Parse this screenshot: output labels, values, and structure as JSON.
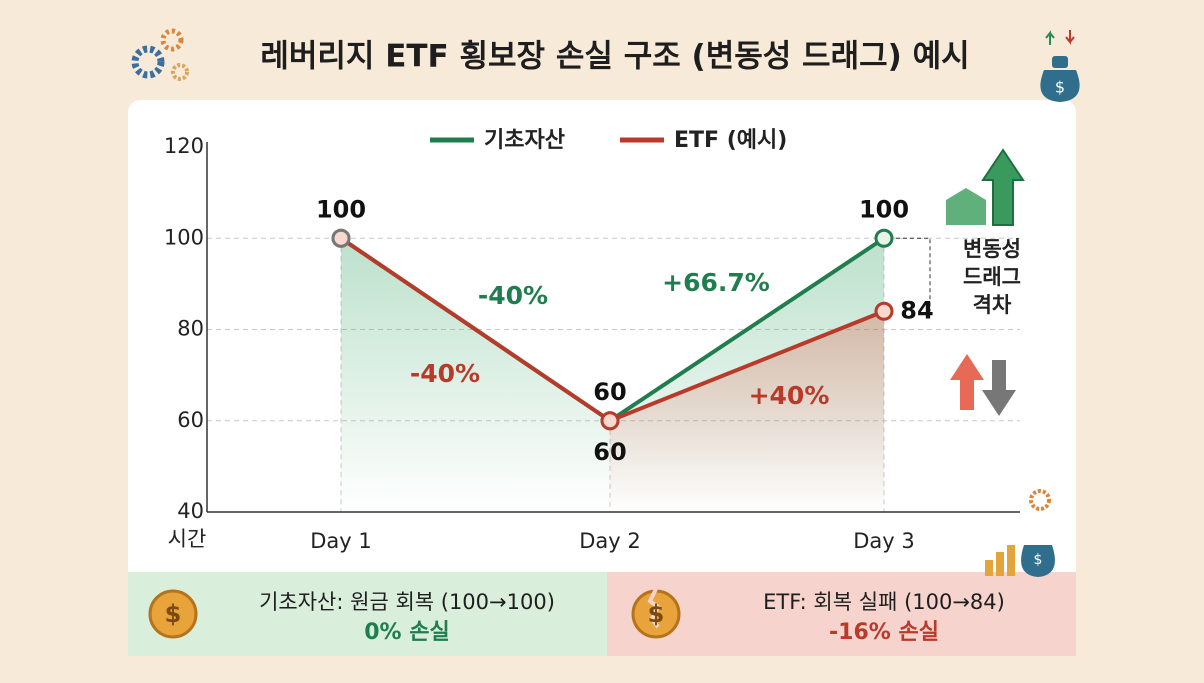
{
  "chart_data": {
    "type": "line",
    "title": "레버리지 ETF 횡보장 손실 구조 (변동성 드래그) 예시",
    "x_label": "시간",
    "categories": [
      "Day 1",
      "Day 2",
      "Day 3"
    ],
    "series": [
      {
        "name": "기초자산",
        "color": "#1f7d4f",
        "values": [
          100,
          60,
          100
        ]
      },
      {
        "name": "ETF (예시)",
        "color": "#b83a2a",
        "values": [
          100,
          60,
          84
        ]
      }
    ],
    "ylim": [
      40,
      120
    ],
    "yticks": [
      40,
      60,
      80,
      100,
      120
    ],
    "grid": true,
    "annotations": [
      {
        "text": "-40%",
        "color": "#1f7d4f"
      },
      {
        "text": "+66.7%",
        "color": "#1f7d4f"
      },
      {
        "text": "-40%",
        "color": "#b83a2a"
      },
      {
        "text": "+40%",
        "color": "#b83a2a"
      },
      {
        "text": [
          "변동성",
          "드래그",
          "격차"
        ],
        "color": "#222222"
      }
    ],
    "summary": [
      {
        "line1": "기초자산: 원금 회복 (100→100)",
        "line2": "0% 손실",
        "color": "#1f7d4f"
      },
      {
        "line1": "ETF: 회복 실패 (100→84)",
        "line2": "-16% 손실",
        "color": "#b83a2a"
      }
    ]
  }
}
